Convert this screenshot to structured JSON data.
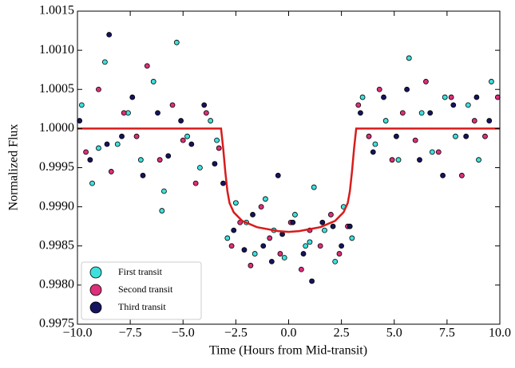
{
  "chart_data": {
    "type": "scatter",
    "xlabel": "Time (Hours from Mid-transit)",
    "ylabel": "Normalized Flux",
    "xlim": [
      -10,
      10
    ],
    "ylim": [
      0.9975,
      1.0015
    ],
    "xticks": [
      {
        "value": -10,
        "label": "−10.0"
      },
      {
        "value": -7.5,
        "label": "−7.5"
      },
      {
        "value": -5,
        "label": "−5.0"
      },
      {
        "value": -2.5,
        "label": "−2.5"
      },
      {
        "value": 0,
        "label": "0.0"
      },
      2.5,
      {
        "value": 5,
        "label": "5.0"
      },
      7.5,
      {
        "value": 10,
        "label": "10.0"
      }
    ],
    "yticks": [
      0.9975,
      {
        "value": 0.998,
        "label": "0.9980"
      },
      0.9985,
      {
        "value": 0.999,
        "label": "0.9990"
      },
      0.9995,
      {
        "value": 1,
        "label": "1.0000"
      },
      1.0005,
      {
        "value": 1.001,
        "label": "1.0010"
      },
      1.0015
    ],
    "legend": "lower left",
    "series": [
      {
        "name": "First transit",
        "color": "#3ee0dc",
        "x": [
          -9.8,
          -9.3,
          -8.7,
          -8.1,
          -7.6,
          -7.0,
          -6.4,
          -5.9,
          -5.3,
          -4.8,
          -4.2,
          -3.7,
          -3.4,
          -2.9,
          -2.5,
          -2.0,
          -1.6,
          -1.1,
          -0.7,
          -0.2,
          0.3,
          0.8,
          1.2,
          1.7,
          2.2,
          2.6,
          3.0,
          3.5,
          4.1,
          4.6,
          5.2,
          5.7,
          6.3,
          6.8,
          7.4,
          7.9,
          8.5,
          9.0,
          9.6,
          -6.0,
          1.0,
          -9.0
        ],
        "values": [
          1.0003,
          0.9993,
          1.00085,
          0.9998,
          1.0002,
          0.9996,
          1.0006,
          0.9992,
          1.0011,
          0.9999,
          0.9995,
          1.0001,
          0.99985,
          0.9986,
          0.99905,
          0.9988,
          0.9984,
          0.9991,
          0.9987,
          0.99835,
          0.9989,
          0.9985,
          0.99925,
          0.9987,
          0.9983,
          0.999,
          0.9986,
          1.0004,
          0.9998,
          1.0001,
          0.9996,
          1.0009,
          1.0002,
          0.9997,
          1.0004,
          0.9999,
          1.0003,
          0.9996,
          1.0006,
          0.99895,
          0.99855,
          0.99975
        ]
      },
      {
        "name": "Second transit",
        "color": "#de2f7a",
        "x": [
          -9.6,
          -9.0,
          -8.4,
          -7.8,
          -7.2,
          -6.7,
          -6.1,
          -5.5,
          -5.0,
          -4.4,
          -3.9,
          -3.3,
          -2.7,
          -2.3,
          -1.8,
          -1.3,
          -0.9,
          -0.4,
          0.1,
          0.6,
          1.0,
          1.5,
          2.0,
          2.4,
          2.8,
          3.3,
          3.8,
          4.3,
          4.9,
          5.4,
          6.0,
          6.5,
          7.1,
          7.7,
          8.2,
          8.8,
          9.3,
          9.9
        ],
        "values": [
          0.9997,
          1.0005,
          0.99945,
          1.0002,
          0.9999,
          1.0008,
          0.9996,
          1.0003,
          0.99985,
          0.9993,
          1.0002,
          0.99975,
          0.9985,
          0.9988,
          0.99825,
          0.999,
          0.9986,
          0.9984,
          0.9988,
          0.9982,
          0.9987,
          0.9985,
          0.9989,
          0.9984,
          0.99875,
          1.0003,
          0.9999,
          1.0005,
          0.9996,
          1.0002,
          0.99985,
          1.0006,
          0.9997,
          1.0004,
          0.9994,
          1.0001,
          0.9999,
          1.0004
        ]
      },
      {
        "name": "Third transit",
        "color": "#16145e",
        "x": [
          -9.9,
          -9.4,
          -8.5,
          -7.9,
          -7.4,
          -6.9,
          -6.2,
          -5.7,
          -5.1,
          -4.6,
          -4.0,
          -3.5,
          -3.1,
          -2.6,
          -2.1,
          -1.7,
          -1.2,
          -0.8,
          -0.3,
          0.2,
          0.7,
          1.1,
          1.6,
          2.1,
          2.5,
          2.9,
          3.4,
          4.0,
          4.5,
          5.1,
          5.6,
          6.2,
          6.7,
          7.3,
          7.8,
          8.4,
          8.9,
          9.5,
          -8.6,
          -0.5
        ],
        "values": [
          1.0001,
          0.9996,
          1.0012,
          0.9999,
          1.0004,
          0.9994,
          1.0002,
          0.99965,
          1.0001,
          0.9998,
          1.0003,
          0.99955,
          0.9993,
          0.9987,
          0.99845,
          0.9989,
          0.9985,
          0.9983,
          0.99865,
          0.9988,
          0.9984,
          0.99805,
          0.9988,
          0.99875,
          0.9985,
          0.99875,
          1.0002,
          0.9997,
          1.0004,
          0.9999,
          1.0005,
          0.9996,
          1.0002,
          0.9994,
          1.0003,
          0.9999,
          1.0004,
          1.0001,
          0.9998,
          0.9994
        ]
      }
    ],
    "model": {
      "color": "#d81c1c",
      "x": [
        -10,
        -3.2,
        -3.1,
        -3.0,
        -2.9,
        -2.8,
        -2.6,
        -2.2,
        -1.5,
        -0.5,
        0,
        0.5,
        1.5,
        2.2,
        2.6,
        2.8,
        2.9,
        3.0,
        3.1,
        3.2,
        10
      ],
      "values": [
        1,
        1,
        0.99975,
        0.99945,
        0.9992,
        0.99905,
        0.99893,
        0.99882,
        0.99874,
        0.99869,
        0.99868,
        0.99869,
        0.99874,
        0.99882,
        0.99893,
        0.99905,
        0.9992,
        0.99945,
        0.99975,
        1,
        1
      ]
    }
  }
}
